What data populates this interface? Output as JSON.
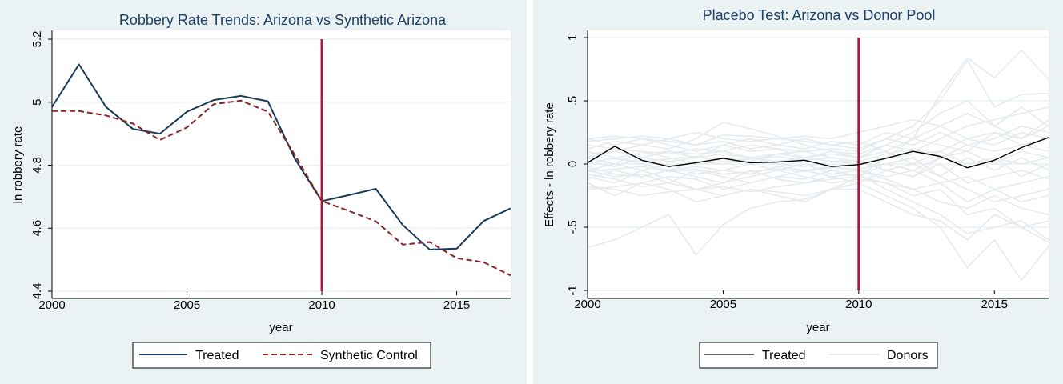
{
  "chart_data": [
    {
      "type": "line",
      "title": "Robbery Rate Trends: Arizona vs Synthetic Arizona",
      "xlabel": "year",
      "ylabel": "ln robbery rate",
      "xlim": [
        2000,
        2017
      ],
      "ylim": [
        4.4,
        5.2
      ],
      "xticks": [
        "2000",
        "2005",
        "2010",
        "2015"
      ],
      "yticks": [
        "4.4",
        "4.6",
        "4.8",
        "5",
        "5.2"
      ],
      "grid": true,
      "vline": 2010,
      "legend_position": "bottom",
      "x": [
        2000,
        2001,
        2002,
        2003,
        2004,
        2005,
        2006,
        2007,
        2008,
        2009,
        2010,
        2011,
        2012,
        2013,
        2014,
        2015,
        2016,
        2017
      ],
      "series": [
        {
          "name": "Treated",
          "color": "#1a3a5c",
          "dash": "solid",
          "values": [
            4.985,
            5.12,
            4.985,
            4.915,
            4.9,
            4.97,
            5.007,
            5.02,
            5.003,
            4.82,
            4.686,
            4.705,
            4.725,
            4.61,
            4.532,
            4.535,
            4.623,
            4.663
          ]
        },
        {
          "name": "Synthetic Control",
          "color": "#8b2323",
          "dash": "dashed",
          "values": [
            4.972,
            4.972,
            4.958,
            4.932,
            4.88,
            4.92,
            4.994,
            5.005,
            4.97,
            4.832,
            4.686,
            4.655,
            4.622,
            4.548,
            4.556,
            4.505,
            4.492,
            4.45
          ]
        }
      ]
    },
    {
      "type": "line",
      "title": "Placebo Test: Arizona vs Donor Pool",
      "xlabel": "year",
      "ylabel": "Effects - ln robbery rate",
      "xlim": [
        2000,
        2017
      ],
      "ylim": [
        -1,
        1
      ],
      "xticks": [
        "2000",
        "2005",
        "2010",
        "2015"
      ],
      "yticks": [
        "-1",
        "-.5",
        "0",
        ".5",
        "1"
      ],
      "grid": true,
      "vline": 2010,
      "legend_position": "bottom",
      "x": [
        2000,
        2001,
        2002,
        2003,
        2004,
        2005,
        2006,
        2007,
        2008,
        2009,
        2010,
        2011,
        2012,
        2013,
        2014,
        2015,
        2016,
        2017
      ],
      "series": [
        {
          "name": "Treated",
          "color": "#000000",
          "dash": "solid",
          "values": [
            0.01,
            0.14,
            0.03,
            -0.02,
            0.01,
            0.045,
            0.01,
            0.015,
            0.03,
            -0.02,
            -0.005,
            0.045,
            0.1,
            0.06,
            -0.03,
            0.03,
            0.13,
            0.21
          ]
        },
        {
          "name": "Donors",
          "color": "#e4eaee",
          "dash": "solid",
          "lines": [
            [
              -0.66,
              -0.6,
              -0.5,
              -0.4,
              -0.72,
              -0.48,
              -0.35,
              -0.3,
              -0.28,
              -0.2,
              -0.1,
              0.05,
              0.2,
              0.55,
              0.84,
              0.68,
              0.9,
              0.67
            ],
            [
              0.2,
              0.22,
              0.2,
              0.18,
              0.15,
              0.23,
              0.22,
              0.2,
              0.18,
              0.15,
              0.12,
              0.2,
              0.3,
              0.5,
              0.82,
              0.45,
              0.55,
              0.56
            ],
            [
              -0.15,
              -0.25,
              -0.15,
              -0.2,
              -0.3,
              -0.25,
              -0.2,
              -0.25,
              -0.3,
              -0.2,
              -0.15,
              -0.25,
              -0.35,
              -0.5,
              -0.82,
              -0.6,
              -0.92,
              -0.65
            ],
            [
              0.05,
              0.1,
              0.15,
              0.12,
              0.2,
              0.33,
              0.28,
              0.22,
              0.15,
              0.1,
              0.05,
              0.15,
              0.25,
              0.4,
              0.5,
              0.3,
              0.45,
              0.3
            ],
            [
              -0.05,
              -0.1,
              -0.08,
              -0.15,
              -0.05,
              -0.1,
              -0.15,
              -0.1,
              -0.05,
              -0.1,
              -0.08,
              -0.2,
              -0.3,
              -0.4,
              -0.55,
              -0.5,
              -0.45,
              -0.6
            ],
            [
              0.1,
              0.05,
              0.08,
              0.1,
              0.05,
              0.15,
              0.1,
              0.12,
              0.05,
              0.08,
              0.05,
              0.1,
              0.2,
              0.15,
              0.1,
              0.25,
              0.2,
              0.35
            ],
            [
              -0.1,
              -0.15,
              -0.05,
              -0.12,
              -0.2,
              -0.15,
              -0.1,
              -0.05,
              -0.1,
              -0.15,
              -0.12,
              -0.15,
              -0.2,
              -0.3,
              -0.35,
              -0.25,
              -0.35,
              -0.4
            ],
            [
              0.0,
              0.05,
              0.0,
              -0.05,
              0.02,
              0.0,
              0.05,
              0.0,
              -0.02,
              0.02,
              0.0,
              0.05,
              0.08,
              0.1,
              0.2,
              0.15,
              0.25,
              0.2
            ],
            [
              0.15,
              0.12,
              0.1,
              0.08,
              0.12,
              0.1,
              0.15,
              0.12,
              0.1,
              0.05,
              0.02,
              -0.05,
              -0.1,
              0.0,
              -0.15,
              -0.1,
              -0.05,
              -0.12
            ],
            [
              -0.2,
              -0.18,
              -0.15,
              -0.1,
              -0.12,
              -0.2,
              -0.15,
              -0.1,
              -0.12,
              -0.05,
              -0.1,
              0.0,
              0.05,
              -0.1,
              -0.2,
              -0.3,
              -0.25,
              -0.2
            ],
            [
              0.05,
              0.0,
              0.1,
              0.05,
              0.0,
              0.05,
              0.02,
              0.08,
              0.05,
              0.1,
              0.08,
              0.15,
              0.1,
              0.2,
              0.3,
              0.35,
              0.4,
              0.45
            ],
            [
              -0.05,
              0.0,
              -0.05,
              0.0,
              -0.08,
              -0.05,
              0.0,
              -0.05,
              0.0,
              -0.08,
              -0.05,
              -0.1,
              -0.05,
              -0.15,
              -0.1,
              -0.2,
              -0.3,
              -0.25
            ],
            [
              0.2,
              0.15,
              0.2,
              0.15,
              0.1,
              0.15,
              0.2,
              0.15,
              0.2,
              0.15,
              0.18,
              0.1,
              0.0,
              0.1,
              0.0,
              0.05,
              -0.1,
              0.0
            ],
            [
              -0.12,
              -0.05,
              -0.1,
              -0.05,
              -0.1,
              -0.15,
              -0.05,
              -0.12,
              -0.15,
              -0.1,
              -0.15,
              -0.05,
              -0.1,
              0.05,
              0.1,
              0.0,
              0.1,
              0.05
            ],
            [
              0.08,
              0.1,
              0.05,
              0.1,
              0.08,
              0.1,
              0.05,
              0.08,
              0.1,
              0.12,
              0.1,
              0.2,
              0.15,
              0.25,
              0.15,
              0.2,
              0.3,
              0.25
            ],
            [
              -0.02,
              -0.08,
              -0.1,
              -0.05,
              -0.02,
              -0.05,
              -0.08,
              -0.02,
              -0.05,
              -0.02,
              -0.05,
              -0.12,
              -0.2,
              -0.15,
              -0.3,
              -0.2,
              -0.15,
              -0.1
            ],
            [
              0.12,
              0.18,
              0.15,
              0.2,
              0.15,
              0.18,
              0.12,
              0.15,
              0.12,
              0.18,
              0.15,
              0.25,
              0.2,
              0.3,
              0.4,
              0.3,
              0.2,
              0.3
            ],
            [
              -0.08,
              -0.12,
              -0.18,
              -0.15,
              -0.2,
              -0.18,
              -0.22,
              -0.18,
              -0.15,
              -0.12,
              -0.1,
              -0.15,
              -0.25,
              -0.2,
              -0.4,
              -0.35,
              -0.5,
              -0.45
            ],
            [
              0.02,
              -0.02,
              0.05,
              0.02,
              0.05,
              0.08,
              0.05,
              0.02,
              0.05,
              0.02,
              0.03,
              -0.05,
              0.0,
              -0.1,
              0.05,
              -0.05,
              0.05,
              -0.05
            ],
            [
              0.18,
              0.2,
              0.22,
              0.2,
              0.25,
              0.2,
              0.18,
              0.2,
              0.22,
              0.2,
              0.25,
              0.3,
              0.35,
              0.3,
              0.2,
              0.25,
              0.15,
              0.1
            ],
            [
              -0.18,
              -0.2,
              -0.25,
              -0.22,
              -0.2,
              -0.25,
              -0.2,
              -0.22,
              -0.25,
              -0.2,
              -0.2,
              -0.3,
              -0.4,
              -0.45,
              -0.6,
              -0.4,
              -0.5,
              -0.62
            ],
            [
              0.06,
              0.04,
              0.02,
              0.04,
              0.06,
              0.02,
              0.04,
              0.06,
              0.03,
              0.05,
              0.02,
              0.08,
              0.12,
              0.05,
              0.15,
              0.1,
              0.15,
              0.2
            ],
            [
              -0.06,
              -0.04,
              -0.02,
              -0.06,
              -0.04,
              -0.08,
              -0.06,
              -0.04,
              -0.06,
              -0.03,
              -0.04,
              0.0,
              -0.05,
              0.05,
              0.0,
              0.05,
              0.0,
              0.05
            ]
          ]
        }
      ]
    }
  ],
  "legends": [
    {
      "items": [
        "Treated",
        "Synthetic Control"
      ]
    },
    {
      "items": [
        "Treated",
        "Donors"
      ]
    }
  ]
}
